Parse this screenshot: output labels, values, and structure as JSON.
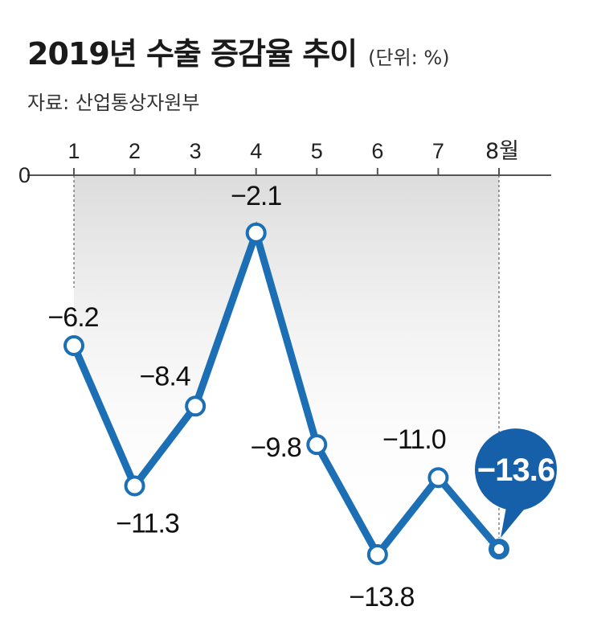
{
  "header": {
    "title": "2019년 수출 증감율 추이",
    "unit": "(단위: %)",
    "source": "자료: 산업통상자원부"
  },
  "colors": {
    "line": "#1c6fb5",
    "callout": "#1560a8",
    "axis": "#555555"
  },
  "chart_data": {
    "type": "line",
    "categories": [
      "1",
      "2",
      "3",
      "4",
      "5",
      "6",
      "7",
      "8월"
    ],
    "values": [
      -6.2,
      -11.3,
      -8.4,
      -2.1,
      -9.8,
      -13.8,
      -11.0,
      -13.6
    ],
    "value_labels": [
      "−6.2",
      "−11.3",
      "−8.4",
      "−2.1",
      "−9.8",
      "−13.8",
      "−11.0",
      "−13.6"
    ],
    "y_axis_label": "0",
    "xaxis_position": "top",
    "highlight_index": 7
  }
}
